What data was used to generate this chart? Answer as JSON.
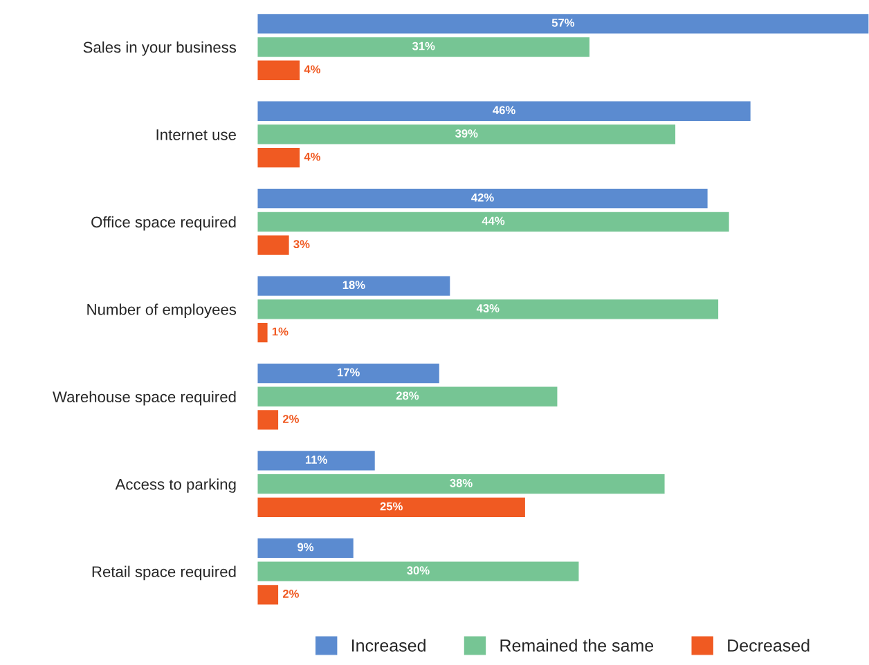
{
  "chart_data": {
    "type": "bar",
    "orientation": "horizontal",
    "categories": [
      "Sales in your business",
      "Internet use",
      "Office space required",
      "Number of employees",
      "Warehouse space required",
      "Access to parking",
      "Retail space required"
    ],
    "series": [
      {
        "name": "Increased",
        "color": "#5b8bd0",
        "values": [
          57,
          46,
          42,
          18,
          17,
          11,
          9
        ],
        "value_labels": [
          "57%",
          "46%",
          "42%",
          "18%",
          "17%",
          "11%",
          "9%"
        ]
      },
      {
        "name": "Remained the same",
        "color": "#76c594",
        "values": [
          31,
          39,
          44,
          43,
          28,
          38,
          30
        ],
        "value_labels": [
          "31%",
          "39%",
          "44%",
          "43%",
          "28%",
          "38%",
          "30%"
        ]
      },
      {
        "name": "Decreased",
        "color": "#f05a22",
        "values": [
          4,
          4,
          3,
          1,
          2,
          25,
          2
        ],
        "value_labels": [
          "4%",
          "4%",
          "3%",
          "1%",
          "2%",
          "25%",
          "2%"
        ]
      }
    ],
    "legend": "bottom",
    "grid": false,
    "tick_labels": "y"
  }
}
